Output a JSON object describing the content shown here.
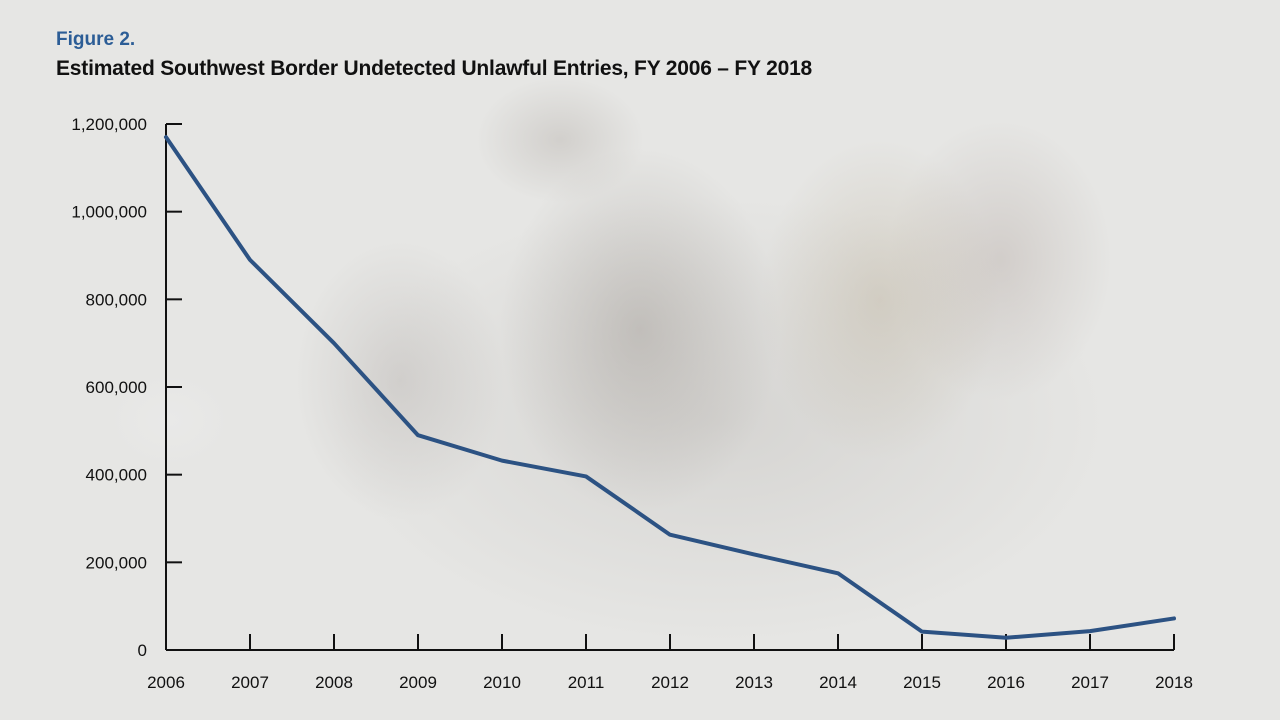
{
  "figure_label": "Figure 2.",
  "colors": {
    "line": "#2c5283",
    "label": "#2c5d96",
    "axis": "#111111"
  },
  "chart_data": {
    "type": "line",
    "title": "Estimated Southwest Border Undetected Unlawful Entries, FY 2006 – FY 2018",
    "xlabel": "",
    "ylabel": "",
    "categories": [
      "2006",
      "2007",
      "2008",
      "2009",
      "2010",
      "2011",
      "2012",
      "2013",
      "2014",
      "2015",
      "2016",
      "2017",
      "2018"
    ],
    "series": [
      {
        "name": "Undetected Unlawful Entries",
        "values": [
          1170000,
          890000,
          700000,
          490000,
          432000,
          396000,
          263000,
          218000,
          175000,
          42000,
          28000,
          43000,
          72000
        ]
      }
    ],
    "ylim": [
      0,
      1200000
    ],
    "yticks": [
      0,
      200000,
      400000,
      600000,
      800000,
      1000000,
      1200000
    ],
    "ytick_labels": [
      "0",
      "200,000",
      "400,000",
      "600,000",
      "800,000",
      "1,000,000",
      "1,200,000"
    ],
    "grid": false
  }
}
